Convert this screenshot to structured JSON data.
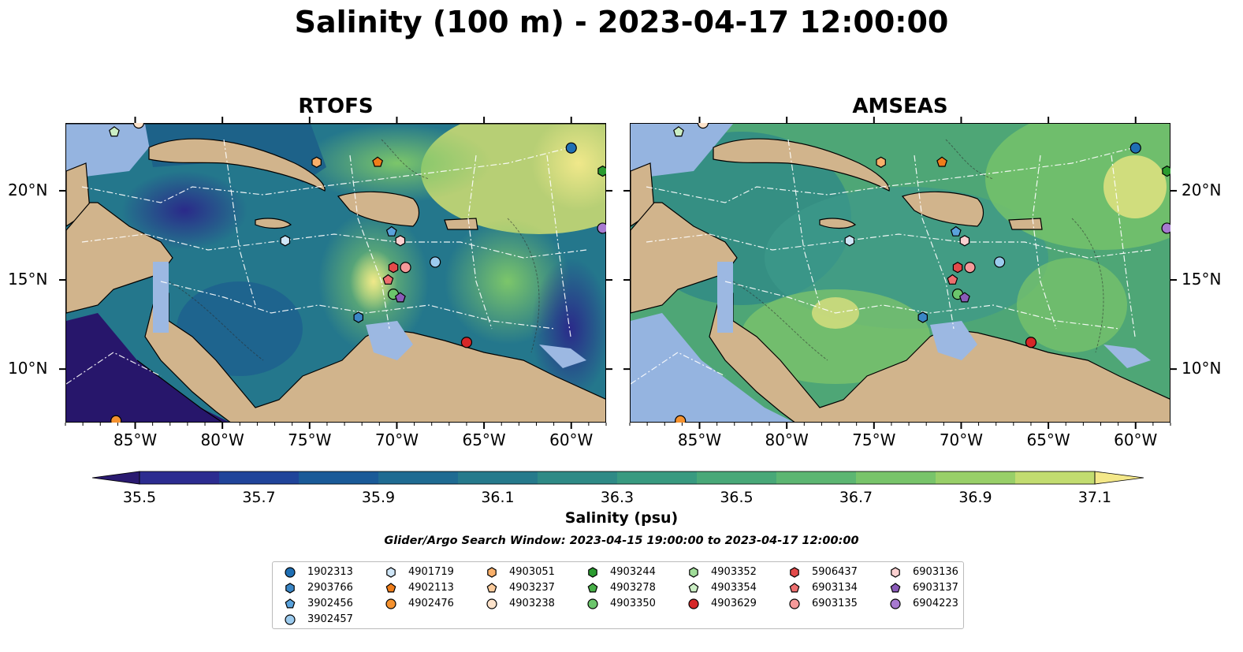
{
  "title": "Salinity (100 m) - 2023-04-17 12:00:00",
  "panels": [
    {
      "title": "RTOFS"
    },
    {
      "title": "AMSEAS"
    }
  ],
  "lon_ticks": [
    "85°W",
    "80°W",
    "75°W",
    "70°W",
    "65°W",
    "60°W"
  ],
  "lat_ticks": [
    "20°N",
    "15°N",
    "10°N"
  ],
  "colorbar": {
    "title": "Salinity (psu)",
    "tick_labels": [
      "35.5",
      "35.7",
      "35.9",
      "36.1",
      "36.3",
      "36.5",
      "36.7",
      "36.9",
      "37.1"
    ],
    "colors": [
      "#2a1a70",
      "#2c2c90",
      "#20449a",
      "#1a5a98",
      "#1f6b92",
      "#267a8c",
      "#2e8a86",
      "#389a80",
      "#48a878",
      "#5cb672",
      "#78c46a",
      "#98cf68",
      "#c2dc70",
      "#f4e889"
    ]
  },
  "search_window": "Glider/Argo Search Window: 2023-04-15 19:00:00 to 2023-04-17 12:00:00",
  "legend": {
    "items": [
      {
        "label": "1902313",
        "marker": "circle",
        "color": "#1f6fb4"
      },
      {
        "label": "2903766",
        "marker": "hexagon",
        "color": "#3a86c6"
      },
      {
        "label": "3902456",
        "marker": "pentagon",
        "color": "#5aa2dc"
      },
      {
        "label": "3902457",
        "marker": "circle",
        "color": "#9ccbee"
      },
      {
        "label": "4901719",
        "marker": "hexagon",
        "color": "#cfe6f7"
      },
      {
        "label": "4902113",
        "marker": "pentagon",
        "color": "#ef7d1a"
      },
      {
        "label": "4902476",
        "marker": "circle",
        "color": "#f5922f"
      },
      {
        "label": "4903051",
        "marker": "hexagon",
        "color": "#f9b06b"
      },
      {
        "label": "4903237",
        "marker": "pentagon",
        "color": "#fbcb9c"
      },
      {
        "label": "4903238",
        "marker": "circle",
        "color": "#fde3cb"
      },
      {
        "label": "4903244",
        "marker": "hexagon",
        "color": "#2a9b2f"
      },
      {
        "label": "4903278",
        "marker": "pentagon",
        "color": "#48b048"
      },
      {
        "label": "4903350",
        "marker": "circle",
        "color": "#6bc56b"
      },
      {
        "label": "4903352",
        "marker": "hexagon",
        "color": "#9fdc98"
      },
      {
        "label": "4903354",
        "marker": "pentagon",
        "color": "#cbeec4"
      },
      {
        "label": "4903629",
        "marker": "circle",
        "color": "#d62728"
      },
      {
        "label": "5906437",
        "marker": "hexagon",
        "color": "#e34a4a"
      },
      {
        "label": "6903134",
        "marker": "pentagon",
        "color": "#ee6f6f"
      },
      {
        "label": "6903135",
        "marker": "circle",
        "color": "#f59a9a"
      },
      {
        "label": "6903136",
        "marker": "hexagon",
        "color": "#fbd0d0"
      },
      {
        "label": "6903137",
        "marker": "pentagon",
        "color": "#8a5bb8"
      },
      {
        "label": "6904223",
        "marker": "circle",
        "color": "#a77ad0"
      }
    ]
  },
  "floats": [
    {
      "id": "1902313",
      "lon": -60.0,
      "lat": 22.4
    },
    {
      "id": "4903244",
      "lon": -58.2,
      "lat": 21.1
    },
    {
      "id": "6904223",
      "lon": -58.2,
      "lat": 17.9
    },
    {
      "id": "4903354",
      "lon": -86.2,
      "lat": 23.3
    },
    {
      "id": "4903238",
      "lon": -84.8,
      "lat": 23.8
    },
    {
      "id": "4903051",
      "lon": -74.6,
      "lat": 21.6
    },
    {
      "id": "4902113",
      "lon": -71.1,
      "lat": 21.6
    },
    {
      "id": "4901719",
      "lon": -76.4,
      "lat": 17.2
    },
    {
      "id": "3902456",
      "lon": -70.3,
      "lat": 17.7
    },
    {
      "id": "6903136",
      "lon": -69.8,
      "lat": 17.2
    },
    {
      "id": "3902457",
      "lon": -67.8,
      "lat": 16.0
    },
    {
      "id": "5906437",
      "lon": -70.2,
      "lat": 15.7
    },
    {
      "id": "6903135",
      "lon": -69.5,
      "lat": 15.7
    },
    {
      "id": "6903134",
      "lon": -70.5,
      "lat": 15.0
    },
    {
      "id": "4903350",
      "lon": -70.2,
      "lat": 14.2
    },
    {
      "id": "6903137",
      "lon": -69.8,
      "lat": 14.0
    },
    {
      "id": "2903766",
      "lon": -72.2,
      "lat": 12.9
    },
    {
      "id": "4903629",
      "lon": -66.0,
      "lat": 11.5
    },
    {
      "id": "4902476",
      "lon": -86.1,
      "lat": 7.1
    }
  ]
}
